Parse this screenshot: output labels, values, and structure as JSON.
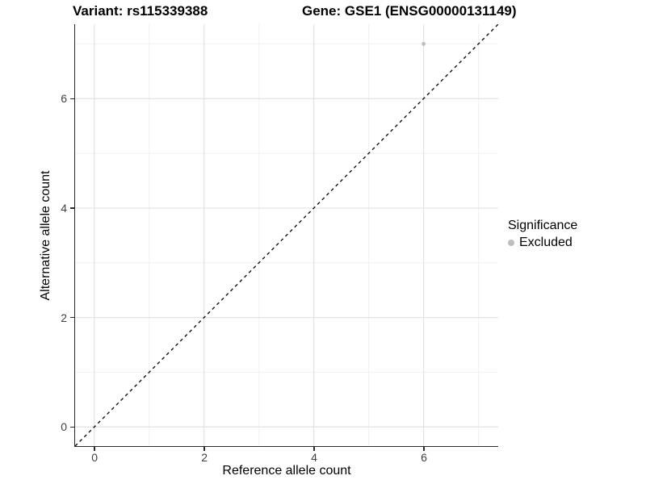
{
  "chart_data": {
    "type": "scatter",
    "titles": [
      {
        "text": "Variant: rs115339388",
        "align": "left"
      },
      {
        "text": "Gene: GSE1 (ENSG00000131149)",
        "align": "right"
      }
    ],
    "xlabel": "Reference allele count",
    "ylabel": "Alternative allele count",
    "xlim": [
      -0.35,
      7.36
    ],
    "ylim": [
      -0.35,
      7.36
    ],
    "x_ticks": [
      0,
      2,
      4,
      6
    ],
    "y_ticks": [
      0,
      2,
      4,
      6
    ],
    "x_minor": [
      1,
      3,
      5,
      7
    ],
    "y_minor": [
      1,
      3,
      5,
      7
    ],
    "grid": "major+minor",
    "series": [
      {
        "name": "Excluded",
        "color": "#bebebe",
        "points": [
          {
            "x": 6,
            "y": 7
          }
        ]
      }
    ],
    "reference_line": {
      "kind": "identity",
      "style": "dashed",
      "color": "#111111"
    },
    "legend": {
      "title": "Significance",
      "position": "right",
      "entries": [
        {
          "label": "Excluded",
          "color": "#bebebe"
        }
      ]
    },
    "colors": {
      "grid_major": "#e3e3e3",
      "grid_minor": "#f1f1f1",
      "axis_line": "#2b2b2b",
      "tick_label": "#404040",
      "point": "#bebebe"
    }
  }
}
